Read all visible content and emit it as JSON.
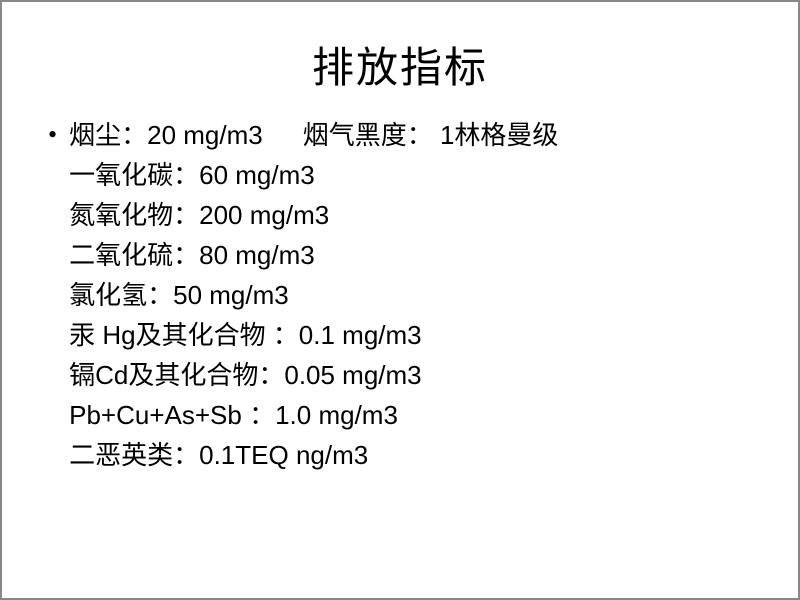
{
  "title": "排放指标",
  "bullet": "•",
  "lines": {
    "l0_a_label": "烟尘：",
    "l0_a_value": "20 mg/m3",
    "l0_b_label": "烟气黑度：",
    "l0_b_value": " 1林格曼级",
    "l1_label": "一氧化碳：",
    "l1_value": "60 mg/m3",
    "l2_label": "氮氧化物：",
    "l2_value": "200 mg/m3",
    "l3_label": "二氧化硫：",
    "l3_value": "80 mg/m3",
    "l4_label": "氯化氢：",
    "l4_value": "50 mg/m3",
    "l5_label": "汞 Hg及其化合物 ：",
    "l5_value": "0.1 mg/m3",
    "l6_label": "镉Cd及其化合物：",
    "l6_value": "0.05 mg/m3",
    "l7_label": "Pb+Cu+As+Sb ：",
    "l7_value": "1.0 mg/m3",
    "l8_label": "二恶英类：",
    "l8_value": "0.1TEQ ng/m3"
  },
  "styling": {
    "background_color": "#ffffff",
    "text_color": "#000000",
    "title_fontsize": 42,
    "body_fontsize": 26,
    "line_height": 40,
    "border_color": "#888888"
  }
}
